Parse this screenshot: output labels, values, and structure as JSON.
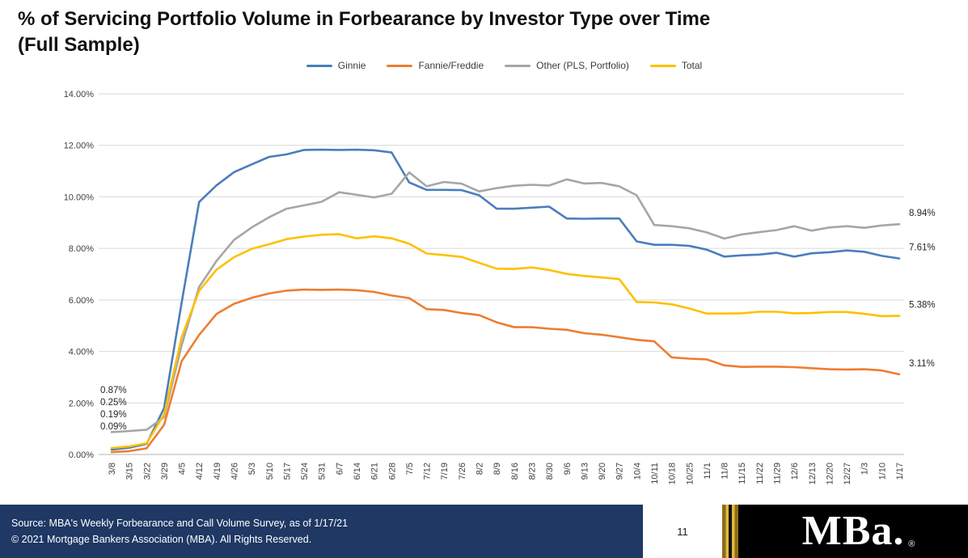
{
  "title": {
    "line1": "% of Servicing Portfolio Volume in Forbearance by Investor Type over Time",
    "line2": "(Full Sample)"
  },
  "chart_data": {
    "type": "line",
    "title": "% of Servicing Portfolio Volume in Forbearance by Investor Type over Time (Full Sample)",
    "xlabel": "",
    "ylabel": "",
    "ylim": [
      0,
      14
    ],
    "yticks": [
      0,
      2,
      4,
      6,
      8,
      10,
      12,
      14
    ],
    "ytick_format": "0.00%",
    "grid": "horizontal",
    "legend_position": "top",
    "x": [
      "3/8",
      "3/15",
      "3/22",
      "3/29",
      "4/5",
      "4/12",
      "4/19",
      "4/26",
      "5/3",
      "5/10",
      "5/17",
      "5/24",
      "5/31",
      "6/7",
      "6/14",
      "6/21",
      "6/28",
      "7/5",
      "7/12",
      "7/19",
      "7/26",
      "8/2",
      "8/9",
      "8/16",
      "8/23",
      "8/30",
      "9/6",
      "9/13",
      "9/20",
      "9/27",
      "10/4",
      "10/11",
      "10/18",
      "10/25",
      "11/1",
      "11/8",
      "11/15",
      "11/22",
      "11/29",
      "12/6",
      "12/13",
      "12/20",
      "12/27",
      "1/3",
      "1/10",
      "1/17"
    ],
    "series": [
      {
        "name": "Ginnie",
        "color": "#4a7ebb",
        "end_label": "7.61%",
        "values": [
          0.19,
          0.26,
          0.41,
          1.8,
          5.89,
          9.8,
          10.45,
          10.96,
          11.26,
          11.55,
          11.65,
          11.82,
          11.83,
          11.82,
          11.83,
          11.81,
          11.72,
          10.56,
          10.27,
          10.27,
          10.26,
          10.06,
          9.54,
          9.54,
          9.58,
          9.62,
          9.16,
          9.15,
          9.16,
          9.16,
          8.27,
          8.14,
          8.14,
          8.1,
          7.95,
          7.68,
          7.73,
          7.76,
          7.83,
          7.68,
          7.81,
          7.85,
          7.92,
          7.87,
          7.71,
          7.61
        ]
      },
      {
        "name": "Fannie/Freddie",
        "color": "#ed7d31",
        "end_label": "3.11%",
        "values": [
          0.09,
          0.13,
          0.24,
          1.15,
          3.62,
          4.64,
          5.46,
          5.85,
          6.08,
          6.25,
          6.36,
          6.4,
          6.39,
          6.4,
          6.38,
          6.31,
          6.17,
          6.07,
          5.64,
          5.61,
          5.49,
          5.41,
          5.13,
          4.94,
          4.94,
          4.88,
          4.84,
          4.71,
          4.65,
          4.55,
          4.45,
          4.39,
          3.77,
          3.72,
          3.69,
          3.46,
          3.4,
          3.41,
          3.41,
          3.39,
          3.35,
          3.31,
          3.3,
          3.31,
          3.26,
          3.11
        ]
      },
      {
        "name": "Other (PLS, Portfolio)",
        "color": "#a6a6a6",
        "end_label": "8.94%",
        "values": [
          0.87,
          0.91,
          0.96,
          1.45,
          4.24,
          6.5,
          7.52,
          8.33,
          8.81,
          9.21,
          9.54,
          9.67,
          9.81,
          10.18,
          10.08,
          9.98,
          10.12,
          10.95,
          10.41,
          10.58,
          10.51,
          10.21,
          10.34,
          10.43,
          10.47,
          10.44,
          10.68,
          10.52,
          10.54,
          10.41,
          10.06,
          8.91,
          8.86,
          8.78,
          8.62,
          8.38,
          8.54,
          8.63,
          8.71,
          8.86,
          8.69,
          8.81,
          8.86,
          8.8,
          8.89,
          8.94
        ]
      },
      {
        "name": "Total",
        "color": "#ffc000",
        "end_label": "5.38%",
        "values": [
          0.25,
          0.31,
          0.44,
          1.55,
          4.55,
          6.35,
          7.18,
          7.66,
          7.98,
          8.16,
          8.36,
          8.46,
          8.53,
          8.55,
          8.39,
          8.47,
          8.39,
          8.18,
          7.8,
          7.74,
          7.67,
          7.44,
          7.21,
          7.2,
          7.26,
          7.16,
          7.01,
          6.93,
          6.87,
          6.81,
          5.92,
          5.9,
          5.83,
          5.67,
          5.47,
          5.47,
          5.48,
          5.54,
          5.54,
          5.48,
          5.49,
          5.53,
          5.53,
          5.46,
          5.37,
          5.38
        ]
      }
    ],
    "start_labels": [
      "0.87%",
      "0.25%",
      "0.19%",
      "0.09%"
    ]
  },
  "footer": {
    "source_line1": "Source: MBA's Weekly Forbearance and Call Volume Survey, as of 1/17/21",
    "source_line2": "© 2021 Mortgage Bankers Association (MBA). All Rights Reserved.",
    "page_number": "11",
    "logo_text": "MBa.",
    "logo_reg": "®"
  }
}
